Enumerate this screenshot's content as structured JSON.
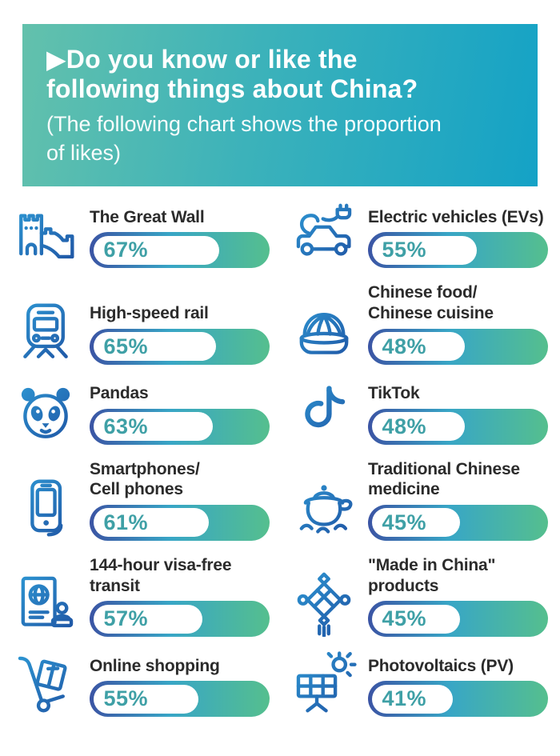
{
  "header": {
    "title": "▶Do you know or like the\nfollowing things about China?",
    "subtitle": "(The following chart shows the proportion\nof likes)"
  },
  "colors": {
    "header_gradient_from": "#63c1ac",
    "header_gradient_to": "#14a2c6",
    "bar_gradient_left": "#3b54a4",
    "bar_gradient_mid": "#38a6c6",
    "bar_gradient_right": "#55bf8e",
    "value_text": "#3fa0a6",
    "icon_blue_light": "#2e9bd6",
    "icon_blue_dark": "#1e4fa0",
    "label_text": "#2b2b2b"
  },
  "items": [
    {
      "label": "The Great Wall",
      "value": 67,
      "value_label": "67%",
      "icon": "great-wall-icon"
    },
    {
      "label": "Electric vehicles (EVs)",
      "value": 55,
      "value_label": "55%",
      "icon": "electric-vehicle-icon"
    },
    {
      "label": "High-speed rail",
      "value": 65,
      "value_label": "65%",
      "icon": "high-speed-rail-icon"
    },
    {
      "label": "Chinese food/\nChinese cuisine",
      "value": 48,
      "value_label": "48%",
      "icon": "steamed-bun-icon"
    },
    {
      "label": "Pandas",
      "value": 63,
      "value_label": "63%",
      "icon": "panda-icon"
    },
    {
      "label": "TikTok",
      "value": 48,
      "value_label": "48%",
      "icon": "tiktok-icon"
    },
    {
      "label": "Smartphones/\nCell phones",
      "value": 61,
      "value_label": "61%",
      "icon": "smartphone-icon"
    },
    {
      "label": "Traditional Chinese\nmedicine",
      "value": 45,
      "value_label": "45%",
      "icon": "medicine-pot-icon"
    },
    {
      "label": "144-hour visa-free\ntransit",
      "value": 57,
      "value_label": "57%",
      "icon": "passport-stamp-icon"
    },
    {
      "label": "\"Made in China\"\nproducts",
      "value": 45,
      "value_label": "45%",
      "icon": "chinese-knot-icon"
    },
    {
      "label": "Online shopping",
      "value": 55,
      "value_label": "55%",
      "icon": "hand-truck-icon"
    },
    {
      "label": "Photovoltaics (PV)",
      "value": 41,
      "value_label": "41%",
      "icon": "solar-panel-icon"
    }
  ],
  "chart_data": {
    "type": "bar",
    "title": "Do you know or like the following things about China?",
    "subtitle": "(The following chart shows the proportion of likes)",
    "ylabel": "Proportion of likes",
    "unit": "%",
    "categories": [
      "The Great Wall",
      "High-speed rail",
      "Pandas",
      "Smartphones/Cell phones",
      "144-hour visa-free transit",
      "Online shopping",
      "Electric vehicles (EVs)",
      "Chinese food/Chinese cuisine",
      "TikTok",
      "Traditional Chinese medicine",
      "\"Made in China\" products",
      "Photovoltaics (PV)"
    ],
    "values": [
      67,
      65,
      63,
      61,
      57,
      55,
      55,
      48,
      48,
      45,
      45,
      41
    ],
    "xlim": [
      0,
      100
    ],
    "grid": false,
    "legend": false,
    "layout": "two-column pictogram pill bars, value label inside white fill"
  }
}
